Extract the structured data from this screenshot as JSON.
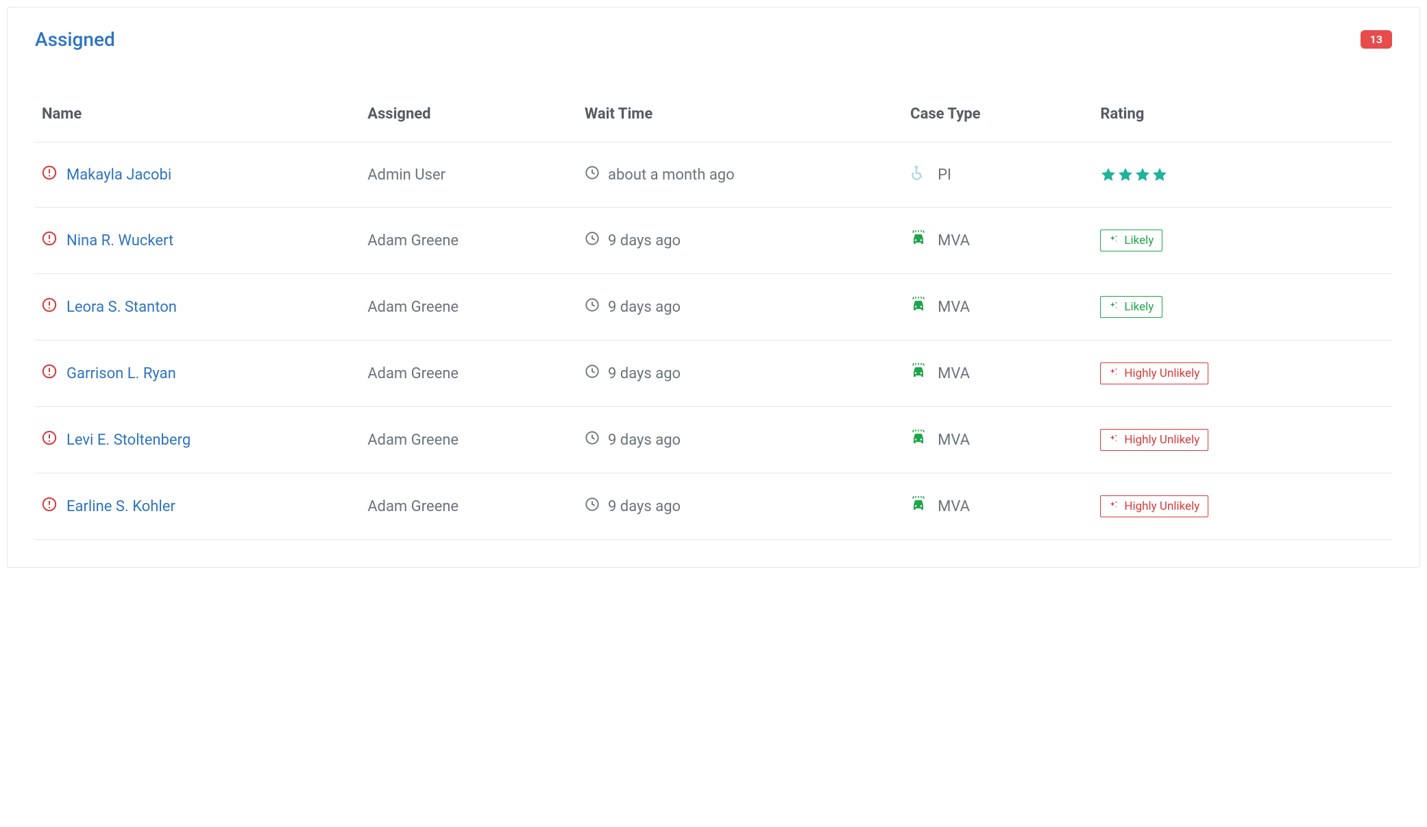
{
  "panel": {
    "title": "Assigned",
    "count": "13"
  },
  "columns": {
    "name": "Name",
    "assigned": "Assigned",
    "wait": "Wait Time",
    "caseType": "Case Type",
    "rating": "Rating"
  },
  "colors": {
    "link": "#2e74c0",
    "text": "#6c727c",
    "heading": "#555a63",
    "badgeBg": "#e74c4c",
    "alert": "#d93a3a",
    "star": "#1fb39b",
    "mva": "#1fa54c",
    "pi": "#b6d9e6",
    "clock": "#6c727c",
    "likely": "#1fa54c",
    "unlikely": "#d93a3a",
    "border": "#e4e7ed"
  },
  "rows": [
    {
      "name": "Makayla Jacobi",
      "assigned": "Admin User",
      "wait": "about a month ago",
      "caseType": "PI",
      "caseIcon": "pi",
      "ratingType": "stars",
      "stars": 4
    },
    {
      "name": "Nina R. Wuckert",
      "assigned": "Adam Greene",
      "wait": "9 days ago",
      "caseType": "MVA",
      "caseIcon": "mva",
      "ratingType": "badge",
      "ratingLabel": "Likely",
      "ratingClass": "likely"
    },
    {
      "name": "Leora S. Stanton",
      "assigned": "Adam Greene",
      "wait": "9 days ago",
      "caseType": "MVA",
      "caseIcon": "mva",
      "ratingType": "badge",
      "ratingLabel": "Likely",
      "ratingClass": "likely"
    },
    {
      "name": "Garrison L. Ryan",
      "assigned": "Adam Greene",
      "wait": "9 days ago",
      "caseType": "MVA",
      "caseIcon": "mva",
      "ratingType": "badge",
      "ratingLabel": "Highly Unlikely",
      "ratingClass": "unlikely"
    },
    {
      "name": "Levi E. Stoltenberg",
      "assigned": "Adam Greene",
      "wait": "9 days ago",
      "caseType": "MVA",
      "caseIcon": "mva",
      "ratingType": "badge",
      "ratingLabel": "Highly Unlikely",
      "ratingClass": "unlikely"
    },
    {
      "name": "Earline S. Kohler",
      "assigned": "Adam Greene",
      "wait": "9 days ago",
      "caseType": "MVA",
      "caseIcon": "mva",
      "ratingType": "badge",
      "ratingLabel": "Highly Unlikely",
      "ratingClass": "unlikely"
    }
  ]
}
